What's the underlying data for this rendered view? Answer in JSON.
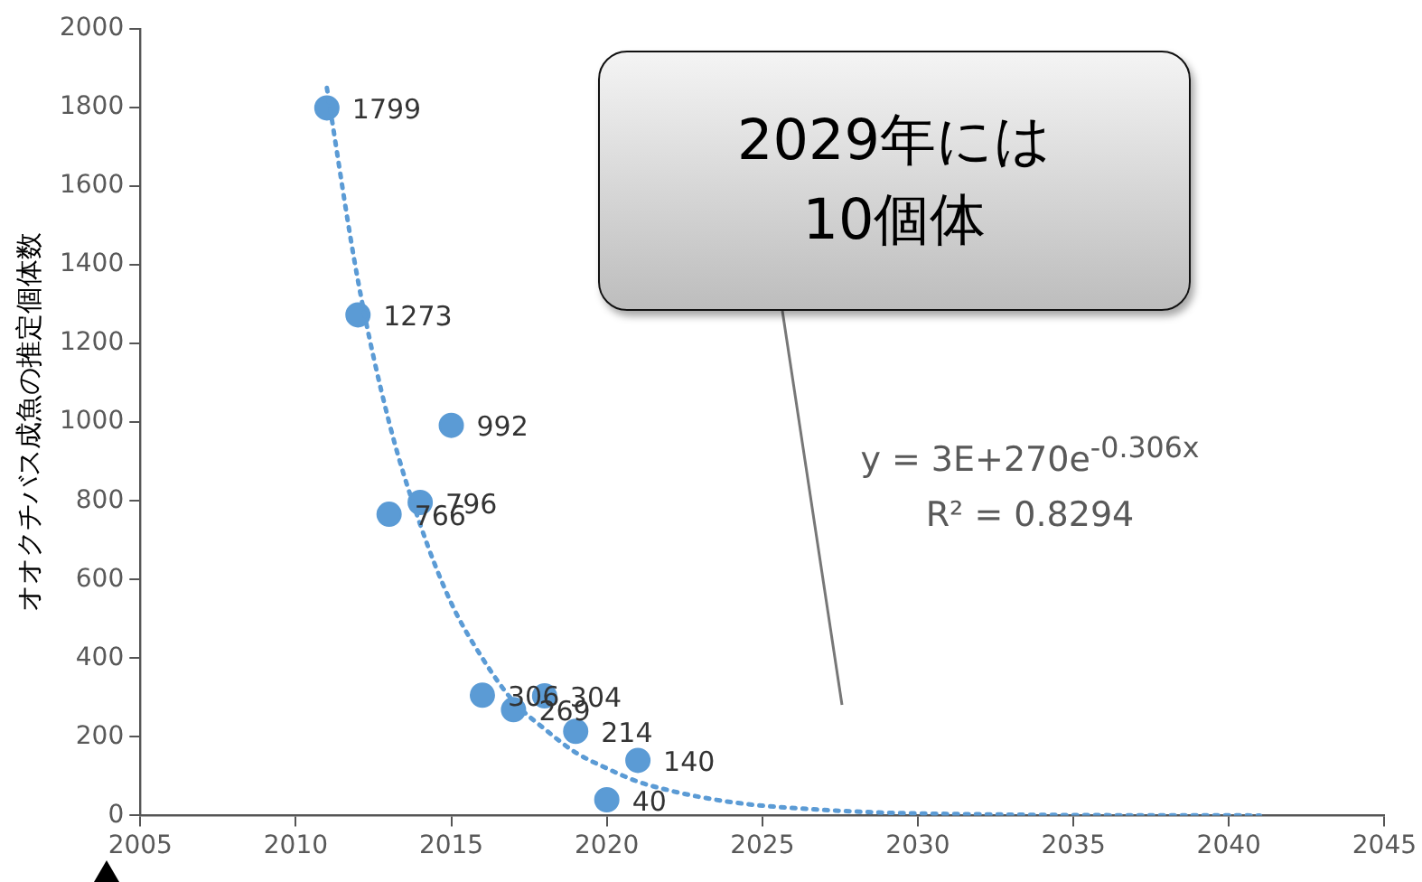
{
  "chart_data": {
    "type": "scatter",
    "ylabel": "オオクチバス成魚の推定個体数",
    "annotations": [
      "2029年には\n10個体",
      "y = 3E+270e$^{-0.306x}$",
      "R² = 0.8294"
    ],
    "xlim": [
      2005,
      2045
    ],
    "xticks": [
      2005,
      2010,
      2015,
      2020,
      2025,
      2030,
      2035,
      2040,
      2045
    ],
    "ylim": [
      0,
      2000
    ],
    "yticks": [
      0,
      200,
      400,
      600,
      800,
      1000,
      1200,
      1400,
      1600,
      1800,
      2000
    ],
    "grid": false,
    "legend": false,
    "series": [
      {
        "color": "#5b9bd5",
        "marker": "circle",
        "x": [
          2011,
          2012,
          2013,
          2014,
          2015,
          2016,
          2017,
          2018,
          2019,
          2020,
          2021
        ],
        "values": [
          1799,
          1273,
          766,
          796,
          992,
          306,
          269,
          304,
          214,
          40,
          140
        ],
        "value_labels": [
          "1799",
          "1273",
          "766",
          "796",
          "992",
          "306",
          "269",
          "304",
          "214",
          "40",
          "140"
        ]
      },
      {
        "type": "line",
        "color": "#5b9bd5",
        "line_style": "dotted",
        "marker": "none",
        "x": [
          2011,
          2012,
          2013,
          2014,
          2015,
          2016,
          2017,
          2018,
          2019,
          2020,
          2021,
          2022,
          2023,
          2024,
          2025,
          2027,
          2029,
          2032,
          2035,
          2041
        ],
        "values": [
          1850,
          1360,
          1000,
          740,
          540,
          400,
          290,
          220,
          160,
          120,
          86,
          64,
          47,
          34,
          25,
          14,
          7,
          3,
          1,
          0
        ]
      }
    ]
  }
}
